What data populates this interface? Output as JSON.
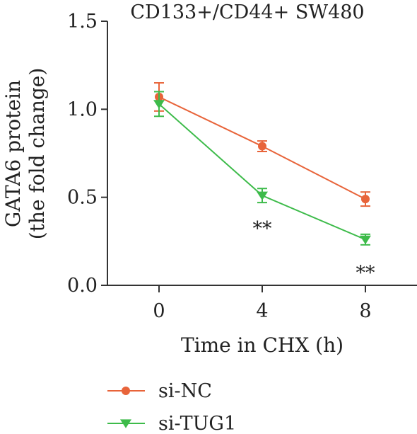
{
  "chart_data": {
    "type": "line",
    "title": "CD133+/CD44+ SW480",
    "ylabel_line1": "GATA6 protein",
    "ylabel_line2": "(the fold change)",
    "xlabel": "Time in CHX (h)",
    "x": [
      0,
      4,
      8
    ],
    "x_ticks": [
      "0",
      "4",
      "8"
    ],
    "y_ticks": [
      "0.0",
      "0.5",
      "1.0",
      "1.5"
    ],
    "ylim": [
      0,
      1.5
    ],
    "xlim": [
      -2,
      10
    ],
    "grid": false,
    "legend_position": "bottom-left",
    "series": [
      {
        "name": "si-NC",
        "color": "#e8643a",
        "marker": "circle",
        "values": [
          1.07,
          0.79,
          0.49
        ],
        "errors": [
          0.08,
          0.03,
          0.04
        ]
      },
      {
        "name": "si-TUG1",
        "color": "#3dbb4a",
        "marker": "triangle-down",
        "values": [
          1.03,
          0.51,
          0.26
        ],
        "errors": [
          0.07,
          0.04,
          0.03
        ]
      }
    ],
    "annotations": [
      {
        "text": "**",
        "x": 4,
        "y": 0.51
      },
      {
        "text": "**",
        "x": 8,
        "y": 0.26
      }
    ]
  }
}
